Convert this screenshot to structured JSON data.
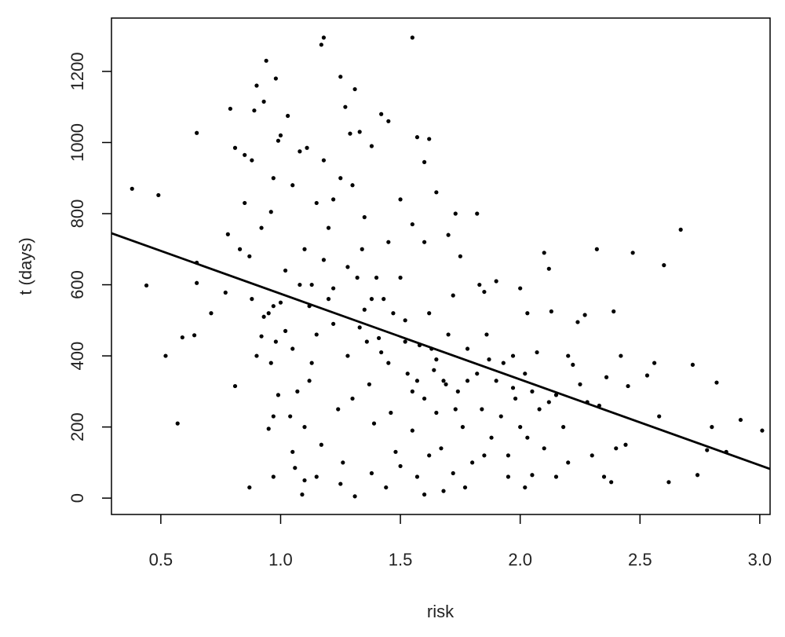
{
  "chart_data": {
    "type": "scatter",
    "x_label": "risk",
    "y_label": "t (days)",
    "xlim": [
      0.294,
      3.043
    ],
    "ylim": [
      -46,
      1350
    ],
    "xticks": [
      0.5,
      {
        "value": 1,
        "label": "1.0"
      },
      1.5,
      {
        "value": 2,
        "label": "2.0"
      },
      2.5,
      {
        "value": 3,
        "label": "3.0"
      }
    ],
    "yticks": [
      0,
      200,
      400,
      600,
      800,
      1000,
      1200
    ],
    "color": "#000000",
    "x": [
      0.38,
      0.49,
      0.44,
      0.52,
      0.57,
      0.59,
      0.64,
      0.65,
      0.65,
      0.65,
      0.71,
      0.78,
      0.79,
      0.77,
      0.81,
      0.81,
      0.83,
      0.85,
      0.87,
      0.87,
      0.88,
      0.89,
      0.9,
      0.93,
      0.94,
      0.96,
      0.97,
      0.97,
      0.98,
      0.99,
      1.0,
      1.03,
      1.05,
      1.08,
      1.09,
      1.1,
      1.11,
      1.15,
      1.17,
      1.18,
      1.18,
      1.22,
      1.25,
      1.27,
      1.29,
      1.31,
      1.31,
      1.33,
      1.38,
      1.42,
      1.45,
      1.55,
      1.57,
      1.6,
      1.62,
      1.6,
      1.68,
      1.73,
      1.77,
      1.82,
      1.85,
      1.9,
      1.97,
      2.0,
      2.03,
      2.05,
      2.07,
      2.1,
      2.12,
      2.13,
      2.2,
      2.22,
      2.24,
      2.27,
      2.3,
      2.32,
      2.35,
      2.36,
      2.38,
      2.39,
      2.42,
      2.45,
      2.47,
      2.53,
      2.56,
      2.58,
      2.6,
      2.62,
      2.67,
      2.72,
      2.74,
      2.78,
      2.8,
      2.82,
      2.86,
      2.92,
      3.01,
      0.93,
      0.95,
      0.97,
      1.0,
      1.02,
      0.98,
      0.96,
      1.05,
      1.07,
      1.04,
      0.99,
      0.92,
      0.9,
      0.95,
      1.06,
      1.1,
      1.12,
      1.13,
      1.15,
      1.17,
      1.2,
      1.22,
      1.24,
      1.26,
      1.28,
      1.3,
      1.32,
      1.34,
      1.35,
      1.37,
      1.39,
      1.41,
      1.43,
      1.45,
      1.46,
      1.48,
      1.5,
      1.52,
      1.53,
      1.55,
      1.57,
      1.58,
      1.6,
      1.62,
      1.64,
      1.65,
      1.67,
      1.69,
      1.7,
      1.72,
      1.74,
      1.76,
      1.78,
      1.8,
      1.82,
      1.84,
      1.86,
      1.88,
      1.9,
      1.92,
      1.95,
      1.98,
      2.0,
      2.02,
      2.05,
      2.08,
      2.1,
      2.15,
      2.18,
      1.05,
      1.1,
      1.15,
      1.2,
      1.25,
      1.3,
      1.35,
      1.4,
      1.45,
      1.5,
      1.55,
      1.6,
      1.65,
      1.7,
      1.75,
      0.85,
      0.88,
      0.92,
      0.97,
      1.02,
      1.08,
      1.12,
      1.18,
      1.22,
      1.28,
      1.33,
      1.38,
      1.42,
      1.47,
      1.52,
      1.57,
      1.63,
      1.68,
      1.73,
      1.78,
      1.83,
      1.87,
      1.93,
      1.97,
      2.03,
      2.12,
      2.25,
      2.28,
      2.33,
      2.4,
      2.44,
      1.25,
      1.38,
      1.44,
      1.5,
      1.62,
      1.72,
      1.85,
      1.95,
      2.02,
      2.15,
      2.2,
      1.13,
      1.36,
      1.55,
      1.65
    ],
    "values": [
      870,
      852,
      598,
      400,
      210,
      452,
      458,
      1027,
      662,
      605,
      520,
      742,
      1095,
      578,
      315,
      985,
      700,
      965,
      30,
      680,
      560,
      1090,
      1160,
      1115,
      1230,
      805,
      60,
      230,
      1180,
      1005,
      1020,
      1075,
      130,
      975,
      10,
      50,
      985,
      60,
      1275,
      1295,
      950,
      840,
      1185,
      1100,
      1025,
      1150,
      5,
      1030,
      990,
      1080,
      1060,
      1295,
      1015,
      945,
      1010,
      10,
      20,
      800,
      30,
      800,
      580,
      610,
      400,
      590,
      520,
      65,
      410,
      690,
      645,
      525,
      400,
      375,
      495,
      515,
      120,
      700,
      60,
      340,
      45,
      525,
      400,
      315,
      690,
      345,
      380,
      230,
      655,
      45,
      755,
      375,
      65,
      135,
      200,
      325,
      130,
      220,
      190,
      510,
      520,
      540,
      550,
      470,
      440,
      380,
      420,
      300,
      230,
      290,
      455,
      400,
      195,
      85,
      200,
      330,
      380,
      460,
      150,
      560,
      490,
      250,
      100,
      400,
      280,
      620,
      700,
      530,
      320,
      210,
      450,
      560,
      380,
      240,
      130,
      620,
      500,
      350,
      190,
      60,
      430,
      280,
      520,
      360,
      240,
      140,
      320,
      460,
      570,
      300,
      200,
      420,
      100,
      350,
      250,
      460,
      170,
      330,
      230,
      120,
      280,
      200,
      350,
      300,
      250,
      140,
      290,
      200,
      880,
      700,
      830,
      760,
      900,
      880,
      790,
      620,
      720,
      840,
      770,
      720,
      860,
      740,
      680,
      830,
      950,
      760,
      900,
      640,
      600,
      540,
      670,
      590,
      650,
      480,
      560,
      410,
      520,
      440,
      330,
      420,
      330,
      250,
      330,
      600,
      390,
      380,
      310,
      170,
      270,
      320,
      270,
      260,
      140,
      150,
      40,
      70,
      30,
      90,
      120,
      70,
      120,
      60,
      30,
      60,
      100,
      600,
      440,
      300,
      390
    ],
    "line": {
      "color": "#000000",
      "x": [
        0.294,
        3.043
      ],
      "values": [
        745,
        82
      ]
    }
  }
}
